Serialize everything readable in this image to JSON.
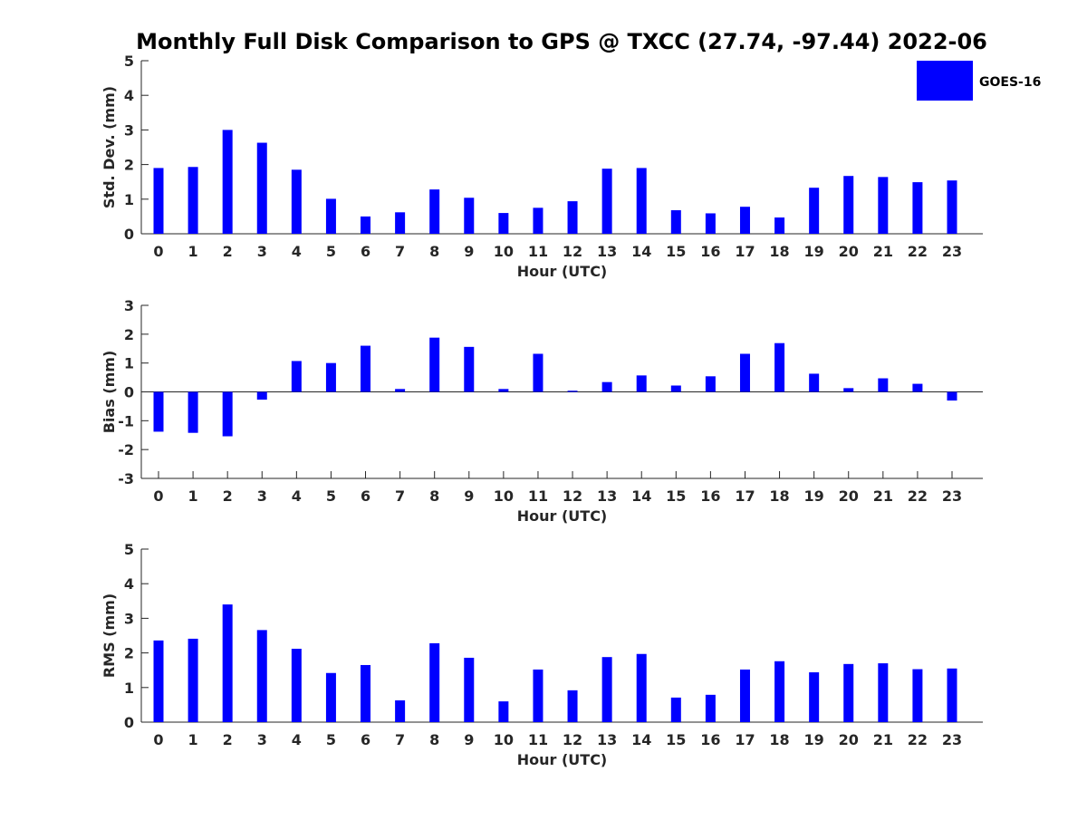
{
  "title": "Monthly Full Disk Comparison to GPS @ TXCC (27.74, -97.44) 2022-06",
  "legend": {
    "label": "GOES-16",
    "color": "#0000ff"
  },
  "chart_data": [
    {
      "type": "bar",
      "title": "Monthly Full Disk Comparison to GPS @ TXCC (27.74, -97.44) 2022-06",
      "xlabel": "Hour (UTC)",
      "ylabel": "Std. Dev. (mm)",
      "ylim": [
        0,
        5
      ],
      "yticks": [
        "0",
        "1",
        "2",
        "3",
        "4",
        "5"
      ],
      "categories": [
        "0",
        "1",
        "2",
        "3",
        "4",
        "5",
        "6",
        "7",
        "8",
        "9",
        "10",
        "11",
        "12",
        "13",
        "14",
        "15",
        "16",
        "17",
        "18",
        "19",
        "20",
        "21",
        "22",
        "23"
      ],
      "series": [
        {
          "name": "GOES-16",
          "color": "#0000ff",
          "values": [
            1.9,
            1.93,
            3.0,
            2.63,
            1.85,
            1.01,
            0.5,
            0.62,
            1.28,
            1.04,
            0.6,
            0.75,
            0.94,
            1.88,
            1.9,
            0.68,
            0.59,
            0.78,
            0.47,
            1.33,
            1.67,
            1.64,
            1.49,
            1.54
          ]
        }
      ]
    },
    {
      "type": "bar",
      "xlabel": "Hour (UTC)",
      "ylabel": "Bias (mm)",
      "ylim": [
        -3,
        3
      ],
      "yticks": [
        "-3",
        "-2",
        "-1",
        "0",
        "1",
        "2",
        "3"
      ],
      "categories": [
        "0",
        "1",
        "2",
        "3",
        "4",
        "5",
        "6",
        "7",
        "8",
        "9",
        "10",
        "11",
        "12",
        "13",
        "14",
        "15",
        "16",
        "17",
        "18",
        "19",
        "20",
        "21",
        "22",
        "23"
      ],
      "series": [
        {
          "name": "GOES-16",
          "color": "#0000ff",
          "values": [
            -1.38,
            -1.42,
            -1.54,
            -0.27,
            1.07,
            1.0,
            1.6,
            0.1,
            1.88,
            1.56,
            0.1,
            1.32,
            0.04,
            0.34,
            0.57,
            0.22,
            0.54,
            1.32,
            1.69,
            0.63,
            0.13,
            0.47,
            0.28,
            -0.3
          ]
        }
      ]
    },
    {
      "type": "bar",
      "xlabel": "Hour (UTC)",
      "ylabel": "RMS (mm)",
      "ylim": [
        0,
        5
      ],
      "yticks": [
        "0",
        "1",
        "2",
        "3",
        "4",
        "5"
      ],
      "categories": [
        "0",
        "1",
        "2",
        "3",
        "4",
        "5",
        "6",
        "7",
        "8",
        "9",
        "10",
        "11",
        "12",
        "13",
        "14",
        "15",
        "16",
        "17",
        "18",
        "19",
        "20",
        "21",
        "22",
        "23"
      ],
      "series": [
        {
          "name": "GOES-16",
          "color": "#0000ff",
          "values": [
            2.36,
            2.41,
            3.4,
            2.66,
            2.12,
            1.42,
            1.65,
            0.63,
            2.28,
            1.86,
            0.6,
            1.52,
            0.92,
            1.88,
            1.97,
            0.71,
            0.79,
            1.52,
            1.76,
            1.44,
            1.68,
            1.7,
            1.53,
            1.55
          ]
        }
      ]
    }
  ]
}
